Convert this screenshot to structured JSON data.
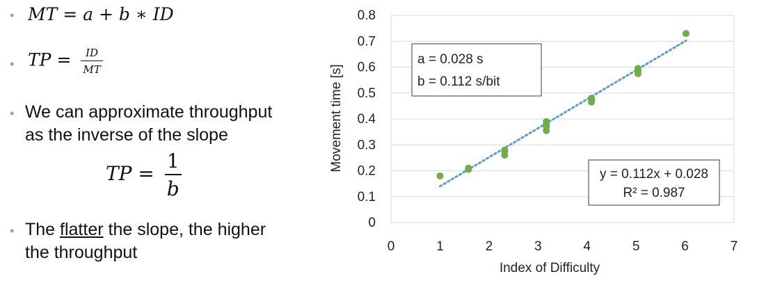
{
  "bullets": {
    "formula1": {
      "lhs": "MT",
      "rhs": "a + b ∗ ID"
    },
    "formula2": {
      "lhs": "TP",
      "num": "ID",
      "den": "MT"
    },
    "bullet3": {
      "line1": "We can approximate throughput",
      "line2": "as the inverse of the slope"
    },
    "formula3": {
      "lhs": "TP",
      "num": "1",
      "den": "b"
    },
    "bullet4": {
      "pre": "The ",
      "underlined": "flatter",
      "post": " the slope, the higher",
      "line2": "the throughput"
    }
  },
  "colors": {
    "points": "#70ad47",
    "trendline": "#5b9bd5",
    "grid": "#d9d9d9",
    "bullet": "#9aa0a6"
  },
  "chart_data": {
    "type": "scatter",
    "xlabel": "Index of Difficulty",
    "ylabel": "Movement time [s]",
    "xlim": [
      0,
      7
    ],
    "ylim": [
      0,
      0.8
    ],
    "xticks": [
      "0",
      "1",
      "2",
      "3",
      "4",
      "5",
      "6",
      "7"
    ],
    "yticks": [
      "0",
      "0.1",
      "0.2",
      "0.3",
      "0.4",
      "0.5",
      "0.6",
      "0.7",
      "0.8"
    ],
    "grid": "horizontal",
    "points": [
      [
        1.0,
        0.18
      ],
      [
        1.58,
        0.205
      ],
      [
        1.58,
        0.21
      ],
      [
        2.32,
        0.26
      ],
      [
        2.32,
        0.275
      ],
      [
        2.32,
        0.28
      ],
      [
        3.17,
        0.355
      ],
      [
        3.17,
        0.37
      ],
      [
        3.17,
        0.38
      ],
      [
        3.17,
        0.39
      ],
      [
        4.09,
        0.465
      ],
      [
        4.09,
        0.475
      ],
      [
        4.09,
        0.48
      ],
      [
        5.04,
        0.575
      ],
      [
        5.04,
        0.585
      ],
      [
        5.04,
        0.595
      ],
      [
        6.02,
        0.73
      ]
    ],
    "trendline": {
      "slope": 0.112,
      "intercept": 0.028,
      "x_range": [
        1.0,
        6.02
      ]
    },
    "annotations": {
      "params_line1": "a = 0.028 s",
      "params_line2": "b = 0.112 s/bit",
      "equation": "y = 0.112x + 0.028",
      "r2": "R² = 0.987"
    }
  }
}
